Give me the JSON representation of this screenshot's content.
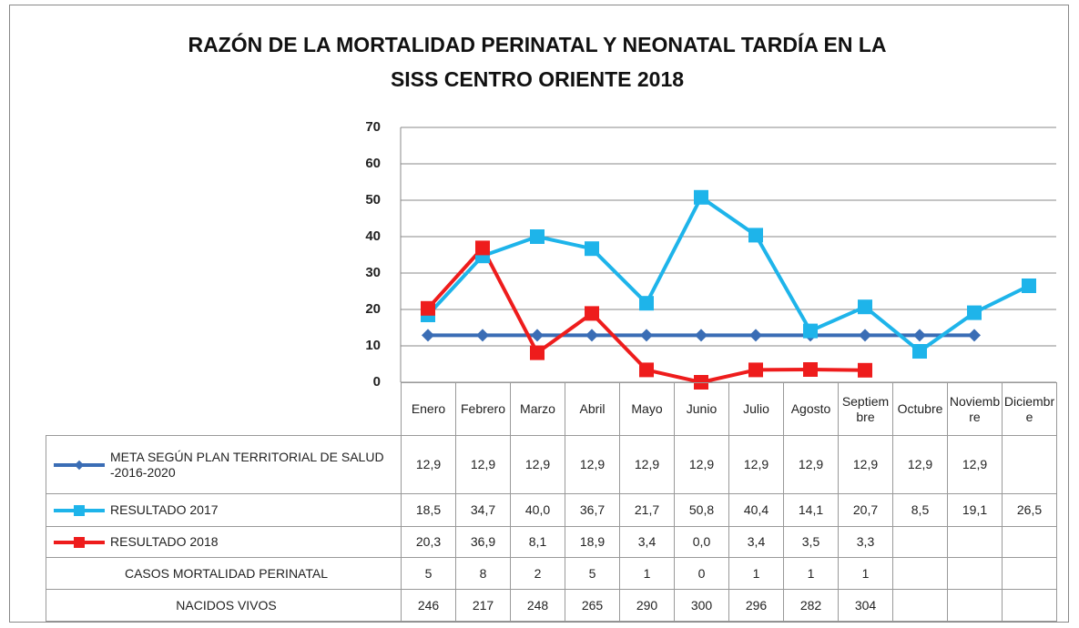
{
  "chart_data": {
    "type": "line",
    "title": "RAZÓN DE LA MORTALIDAD PERINATAL Y NEONATAL TARDÍA EN LA SISS CENTRO ORIENTE 2018",
    "categories": [
      "Enero",
      "Febrero",
      "Marzo",
      "Abril",
      "Mayo",
      "Junio",
      "Julio",
      "Agosto",
      "Septiembre",
      "Octubre",
      "Noviembre",
      "Diciembre"
    ],
    "ylim": [
      0,
      70
    ],
    "yticks": [
      0,
      10,
      20,
      30,
      40,
      50,
      60,
      70
    ],
    "grid": true,
    "series": [
      {
        "name": "META SEGÚN PLAN TERRITORIAL DE SALUD -2016-2020",
        "color": "#3a6db5",
        "marker": "diamond",
        "values": [
          12.9,
          12.9,
          12.9,
          12.9,
          12.9,
          12.9,
          12.9,
          12.9,
          12.9,
          12.9,
          12.9,
          null
        ],
        "value_labels": [
          "12,9",
          "12,9",
          "12,9",
          "12,9",
          "12,9",
          "12,9",
          "12,9",
          "12,9",
          "12,9",
          "12,9",
          "12,9",
          null
        ]
      },
      {
        "name": "RESULTADO 2017",
        "color": "#1eb4ea",
        "marker": "square",
        "values": [
          18.5,
          34.7,
          40.0,
          36.7,
          21.7,
          50.8,
          40.4,
          14.1,
          20.7,
          8.5,
          19.1,
          26.5
        ],
        "value_labels": [
          "18,5",
          "34,7",
          "40,0",
          "36,7",
          "21,7",
          "50,8",
          "40,4",
          "14,1",
          "20,7",
          "8,5",
          "19,1",
          "26,5"
        ]
      },
      {
        "name": "RESULTADO 2018",
        "color": "#ee1c1c",
        "marker": "square",
        "values": [
          20.3,
          36.9,
          8.1,
          18.9,
          3.4,
          0.0,
          3.4,
          3.5,
          3.3,
          null,
          null,
          null
        ],
        "value_labels": [
          "20,3",
          "36,9",
          "8,1",
          "18,9",
          "3,4",
          "0,0",
          "3,4",
          "3,5",
          "3,3",
          null,
          null,
          null
        ]
      }
    ],
    "extra_rows": [
      {
        "name": "CASOS MORTALIDAD PERINATAL",
        "values": [
          5,
          8,
          2,
          5,
          1,
          0,
          1,
          1,
          1,
          null,
          null,
          null
        ]
      },
      {
        "name": "NACIDOS VIVOS",
        "values": [
          246,
          217,
          248,
          265,
          290,
          300,
          296,
          282,
          304,
          null,
          null,
          null
        ]
      }
    ]
  }
}
